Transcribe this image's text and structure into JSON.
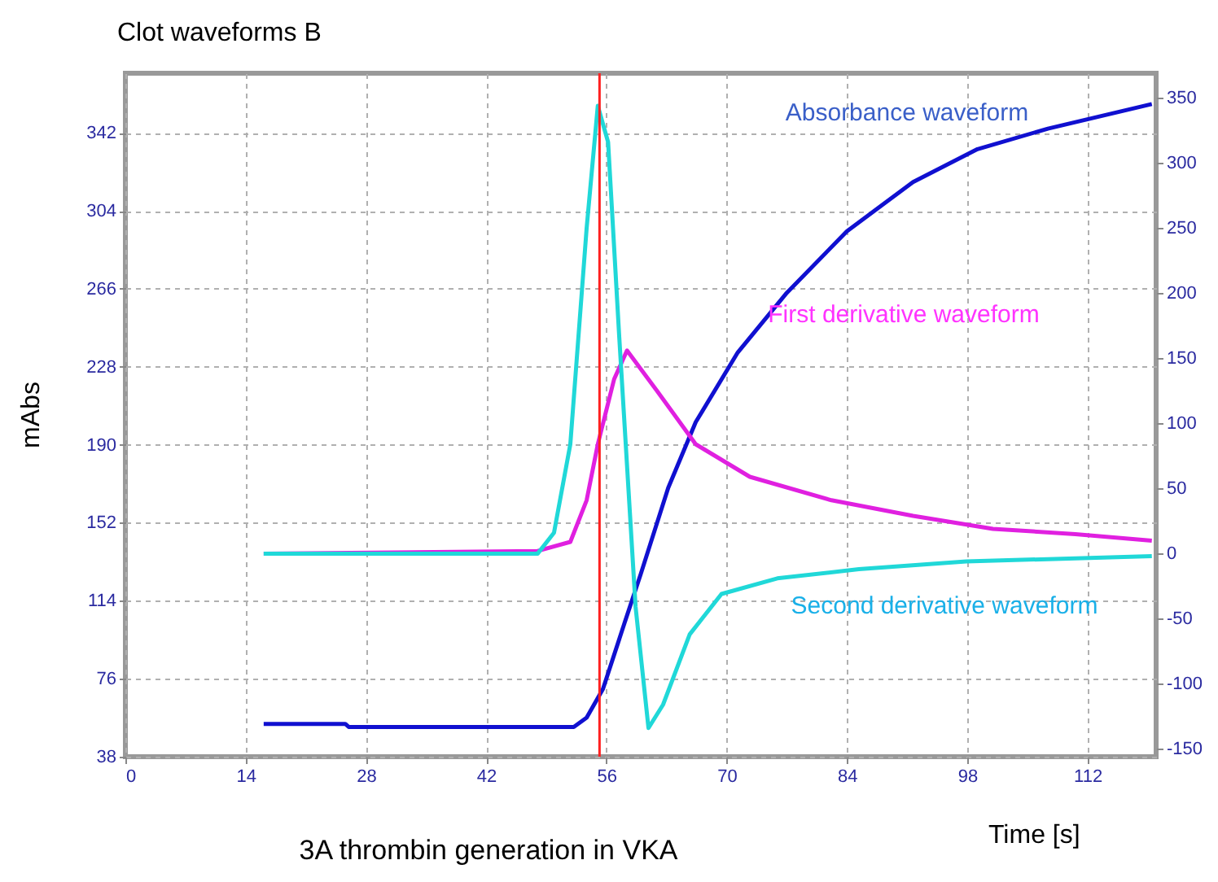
{
  "chart_data": {
    "type": "line",
    "title": "Clot waveforms B",
    "xlabel": "Time [s]",
    "ylabel": "mAbs",
    "annotations": [
      "3A thrombin generation in VKA"
    ],
    "xlim": [
      0,
      120
    ],
    "xticks": [
      0,
      14,
      28,
      42,
      56,
      70,
      84,
      98,
      112
    ],
    "ylim": [
      38,
      371
    ],
    "yticks": [
      38,
      76,
      114,
      152,
      190,
      228,
      266,
      304,
      342
    ],
    "y2lim": [
      -156,
      369
    ],
    "y2ticks": [
      -150,
      -100,
      -50,
      0,
      50,
      100,
      150,
      200,
      250,
      300,
      350
    ],
    "grid": true,
    "legend": false,
    "ref_lines": [
      {
        "axis": "x",
        "value": 55.2,
        "color": "#ff2020"
      }
    ],
    "series": [
      {
        "name": "Absorbance  waveform",
        "color": "#1010d0",
        "x": [
          16.1,
          25.6,
          26,
          52.2,
          53.7,
          55.6,
          58.1,
          60,
          63.2,
          66.4,
          71.3,
          77,
          84,
          91.7,
          99.2,
          107.4,
          119.5
        ],
        "values": [
          54,
          54,
          52.5,
          52.5,
          57,
          71,
          103,
          127,
          169,
          201,
          235,
          264,
          294,
          318,
          334,
          344,
          356
        ]
      },
      {
        "name": "First derivative waveform",
        "color": "#e020e0",
        "axis": "y2",
        "x": [
          16.1,
          48,
          51.8,
          53.7,
          55,
          56.9,
          58.4,
          61.9,
          66.4,
          72.7,
          82.2,
          91.7,
          101,
          110.6,
          119.5
        ],
        "values": [
          0,
          2,
          9,
          41,
          84,
          134,
          156,
          125,
          84,
          59,
          41,
          29,
          19,
          15,
          10
        ]
      },
      {
        "name": "Second derivative waveform",
        "color": "#20d8d8",
        "axis": "y2",
        "x": [
          16.1,
          48,
          49.9,
          51.8,
          53.7,
          55,
          56.2,
          57.5,
          59.4,
          60.9,
          62.6,
          65.7,
          69.4,
          75.9,
          85.4,
          97.9,
          119.5
        ],
        "values": [
          0,
          0,
          16,
          84,
          250,
          344,
          316,
          166,
          -41,
          -134,
          -116,
          -62,
          -31,
          -19,
          -12,
          -6,
          -2
        ]
      }
    ]
  }
}
